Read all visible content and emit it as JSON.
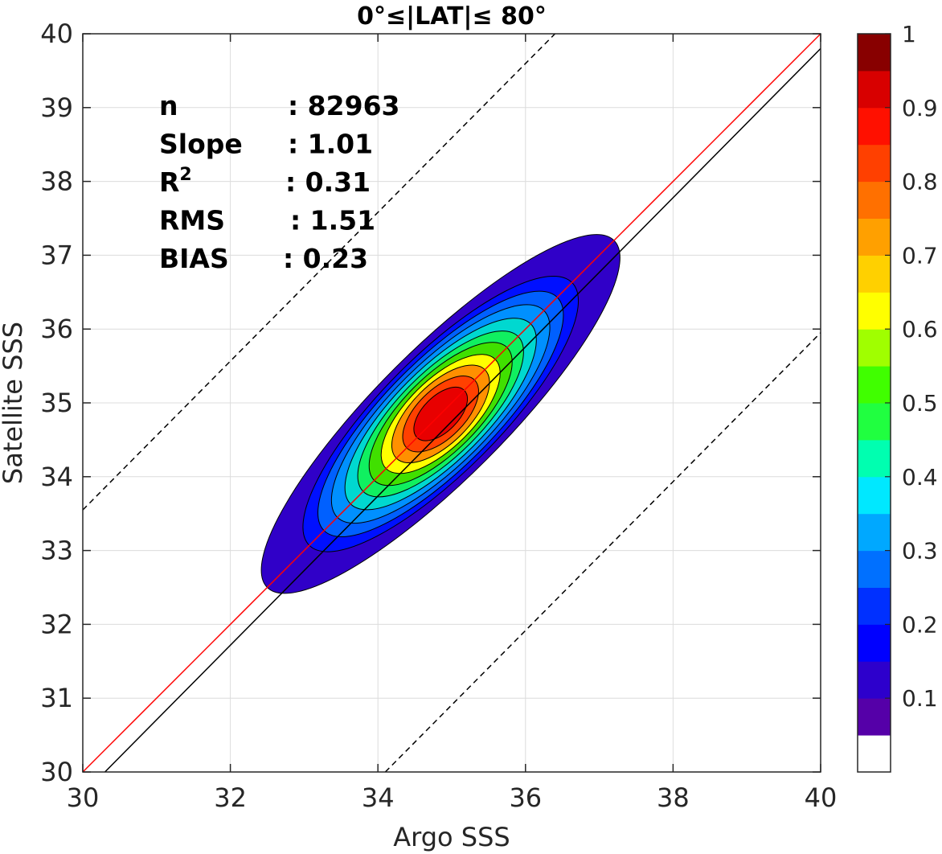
{
  "chart_data": {
    "type": "contour",
    "title": "0°≤|LAT|≤ 80°",
    "xlabel": "Argo SSS",
    "ylabel": "Satellite SSS",
    "xlim": [
      30,
      40
    ],
    "ylim": [
      30,
      40
    ],
    "xticks": [
      "30",
      "32",
      "34",
      "36",
      "38",
      "40"
    ],
    "yticks": [
      "30",
      "31",
      "32",
      "33",
      "34",
      "35",
      "36",
      "37",
      "38",
      "39",
      "40"
    ],
    "grid": true,
    "stats": [
      {
        "label": "n",
        "value": ": 82963"
      },
      {
        "label": "Slope",
        "value": ": 1.01"
      },
      {
        "label": "R",
        "sup": "2",
        "value": ": 0.31"
      },
      {
        "label": "RMS",
        "value": ": 1.51"
      },
      {
        "label": "BIAS",
        "value": ": 0.23"
      }
    ],
    "lines": [
      {
        "role": "one-to-one",
        "color": "#ff0000",
        "style": "solid",
        "points": [
          [
            30,
            30
          ],
          [
            40,
            40
          ]
        ]
      },
      {
        "role": "regression",
        "color": "#000000",
        "style": "solid",
        "points": [
          [
            30.3,
            30
          ],
          [
            40,
            39.8
          ]
        ]
      },
      {
        "role": "upper-bound",
        "color": "#000000",
        "style": "dashed",
        "points": [
          [
            30,
            33.55
          ],
          [
            36.4,
            40
          ]
        ]
      },
      {
        "role": "lower-bound",
        "color": "#000000",
        "style": "dashed",
        "points": [
          [
            34.1,
            30
          ],
          [
            40,
            35.95
          ]
        ]
      }
    ],
    "contour_center": [
      34.85,
      34.85
    ],
    "contour_levels": [
      {
        "level": 0.05,
        "color": "#3000c8",
        "rx": 2.35,
        "ry": 0.62
      },
      {
        "level": 0.15,
        "color": "#0010ff",
        "rx": 1.78,
        "ry": 0.56
      },
      {
        "level": 0.2,
        "color": "#0060ff",
        "rx": 1.58,
        "ry": 0.52
      },
      {
        "level": 0.25,
        "color": "#0090ff",
        "rx": 1.4,
        "ry": 0.48
      },
      {
        "level": 0.35,
        "color": "#00d8d0",
        "rx": 1.22,
        "ry": 0.44
      },
      {
        "level": 0.45,
        "color": "#10f060",
        "rx": 1.05,
        "ry": 0.4
      },
      {
        "level": 0.55,
        "color": "#40e000",
        "rx": 0.9,
        "ry": 0.36
      },
      {
        "level": 0.65,
        "color": "#ffff00",
        "rx": 0.74,
        "ry": 0.32
      },
      {
        "level": 0.75,
        "color": "#ff9000",
        "rx": 0.6,
        "ry": 0.28
      },
      {
        "level": 0.85,
        "color": "#ff4000",
        "rx": 0.46,
        "ry": 0.23
      },
      {
        "level": 0.92,
        "color": "#e80000",
        "rx": 0.32,
        "ry": 0.17
      }
    ],
    "colorbar": {
      "ticks": [
        "0.1",
        "0.2",
        "0.3",
        "0.4",
        "0.5",
        "0.6",
        "0.7",
        "0.8",
        "0.9",
        "1"
      ],
      "colors": [
        "#ffffff",
        "#5500a8",
        "#2d00cc",
        "#0000ff",
        "#0030ff",
        "#0070ff",
        "#00a8ff",
        "#00e8ff",
        "#00ffb0",
        "#20ff40",
        "#40ff00",
        "#a0ff00",
        "#ffff00",
        "#ffd000",
        "#ffa000",
        "#ff7000",
        "#ff4000",
        "#ff1000",
        "#d80000",
        "#880000"
      ]
    }
  }
}
